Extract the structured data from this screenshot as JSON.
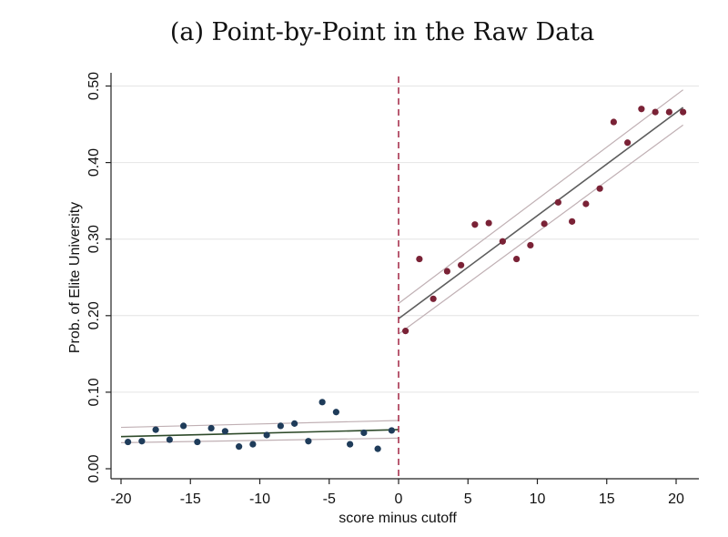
{
  "chart_data": {
    "type": "scatter",
    "title": "(a) Point-by-Point in the Raw Data",
    "xlabel": "score minus cutoff",
    "ylabel": "Prob. of Elite University",
    "xlim": [
      -20.5,
      21.5
    ],
    "ylim": [
      0,
      0.505
    ],
    "x_ticks": [
      -20,
      -15,
      -10,
      -5,
      0,
      5,
      10,
      15,
      20
    ],
    "x_tick_labels": [
      "-20",
      "-15",
      "-10",
      "-5",
      "0",
      "5",
      "10",
      "15",
      "20"
    ],
    "y_ticks": [
      0,
      0.1,
      0.2,
      0.3,
      0.4,
      0.5
    ],
    "y_tick_labels": [
      "0.00",
      "0.10",
      "0.20",
      "0.30",
      "0.40",
      "0.50"
    ],
    "grid": "horizontal",
    "cutoff": 0,
    "series": [
      {
        "color": "#1f3c5a",
        "x": [
          -19.5,
          -18.5,
          -17.5,
          -16.5,
          -15.5,
          -14.5,
          -13.5,
          -12.5,
          -11.5,
          -10.5,
          -9.5,
          -8.5,
          -7.5,
          -6.5,
          -5.5,
          -4.5,
          -3.5,
          -2.5,
          -1.5,
          -0.5
        ],
        "y": [
          0.035,
          0.036,
          0.051,
          0.038,
          0.056,
          0.035,
          0.053,
          0.049,
          0.029,
          0.032,
          0.044,
          0.056,
          0.059,
          0.036,
          0.087,
          0.074,
          0.032,
          0.047,
          0.026,
          0.05
        ]
      },
      {
        "color": "#7a2236",
        "x": [
          0.5,
          1.5,
          2.5,
          3.5,
          4.5,
          5.5,
          6.5,
          7.5,
          8.5,
          9.5,
          10.5,
          11.5,
          12.5,
          13.5,
          14.5,
          15.5,
          16.5,
          17.5,
          18.5,
          19.5,
          20.5
        ],
        "y": [
          0.18,
          0.274,
          0.222,
          0.258,
          0.266,
          0.319,
          0.321,
          0.297,
          0.274,
          0.292,
          0.32,
          0.348,
          0.323,
          0.346,
          0.366,
          0.453,
          0.426,
          0.47,
          0.466,
          0.466,
          0.466
        ]
      }
    ],
    "fits": [
      {
        "color": "#2e4a2a",
        "x": [
          -20,
          0
        ],
        "y": [
          0.042,
          0.051
        ]
      },
      {
        "color": "#5d5d5d",
        "x": [
          0,
          20.5
        ],
        "y": [
          0.196,
          0.472
        ]
      }
    ],
    "ci_bands": [
      {
        "color": "#c0b0b4",
        "x": [
          -20,
          0
        ],
        "lower": [
          0.034,
          0.04
        ],
        "upper": [
          0.054,
          0.063
        ]
      },
      {
        "color": "#c0b0b4",
        "x": [
          0,
          20.5
        ],
        "lower": [
          0.176,
          0.449
        ],
        "upper": [
          0.216,
          0.495
        ]
      }
    ],
    "cutoff_line_color": "#a8334f"
  }
}
